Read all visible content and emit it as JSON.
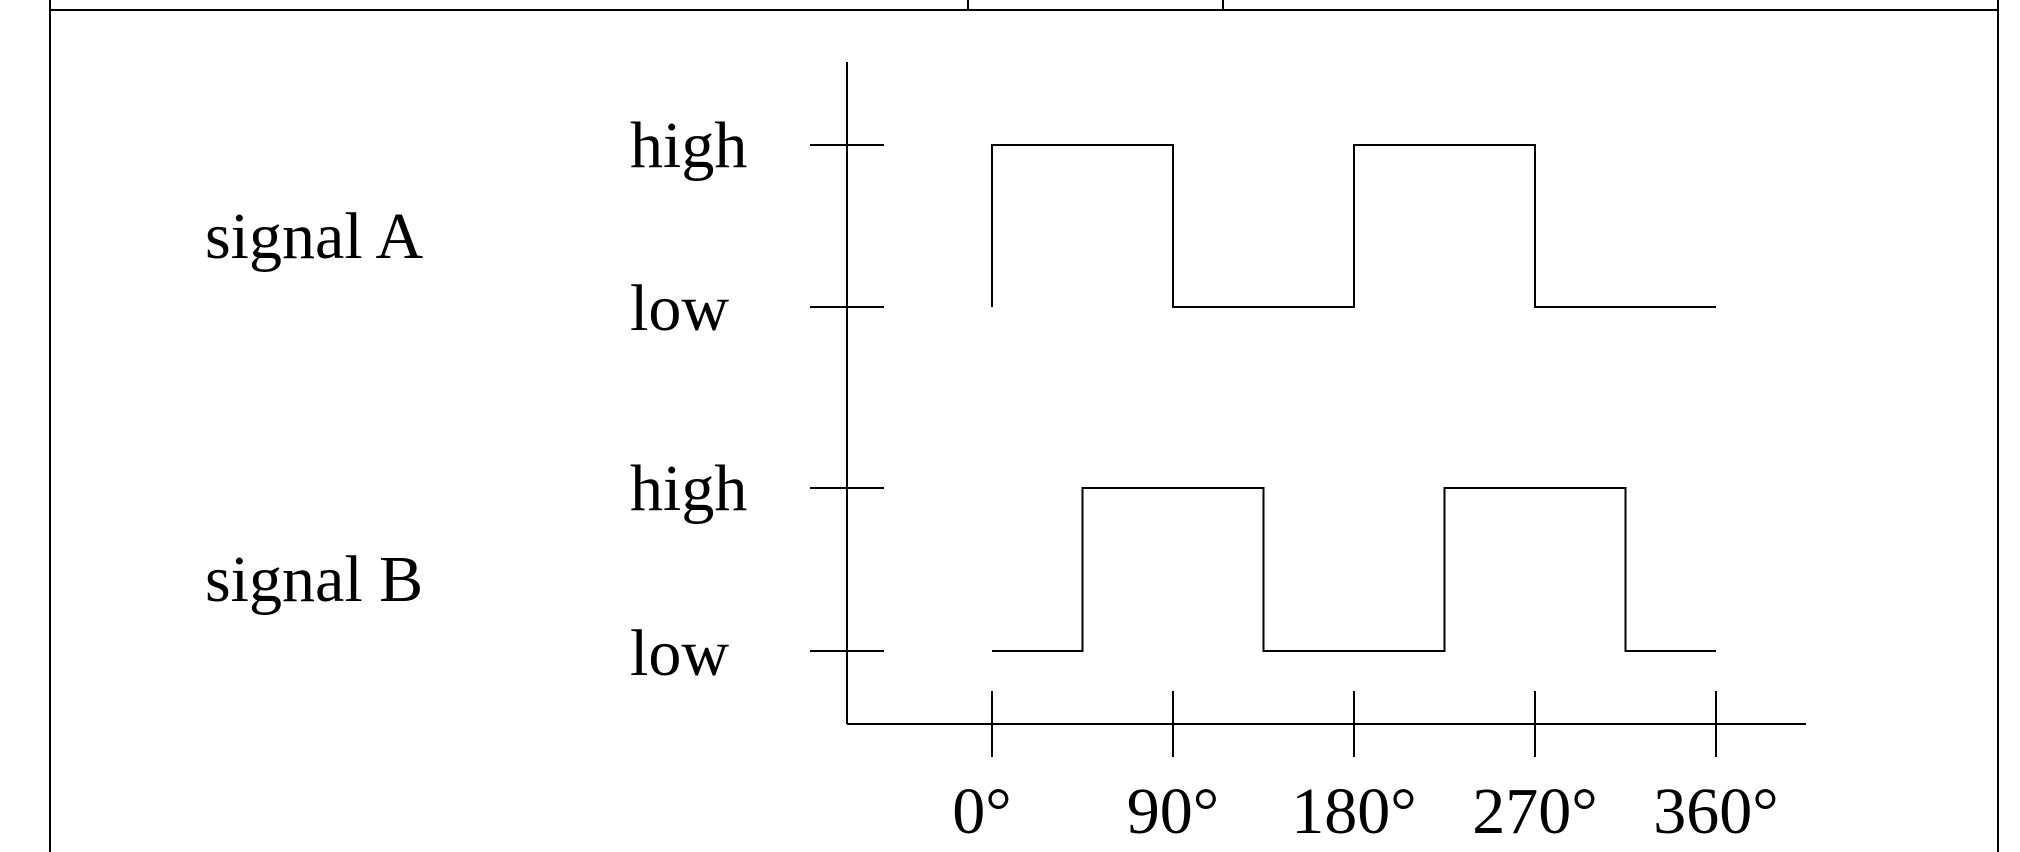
{
  "signals": [
    {
      "name": "signal A",
      "high_label": "high",
      "low_label": "low",
      "levels": [
        [
          0,
          1
        ],
        [
          90,
          0
        ],
        [
          180,
          1
        ],
        [
          270,
          0
        ],
        [
          360,
          0
        ]
      ]
    },
    {
      "name": "signal B",
      "high_label": "high",
      "low_label": "low",
      "levels": [
        [
          0,
          0
        ],
        [
          45,
          1
        ],
        [
          135,
          0
        ],
        [
          225,
          1
        ],
        [
          315,
          0
        ],
        [
          360,
          0
        ]
      ]
    }
  ],
  "x_ticks": [
    "0°",
    "90°",
    "180°",
    "270°",
    "360°"
  ],
  "x_tick_values": [
    0,
    90,
    180,
    270,
    360
  ]
}
